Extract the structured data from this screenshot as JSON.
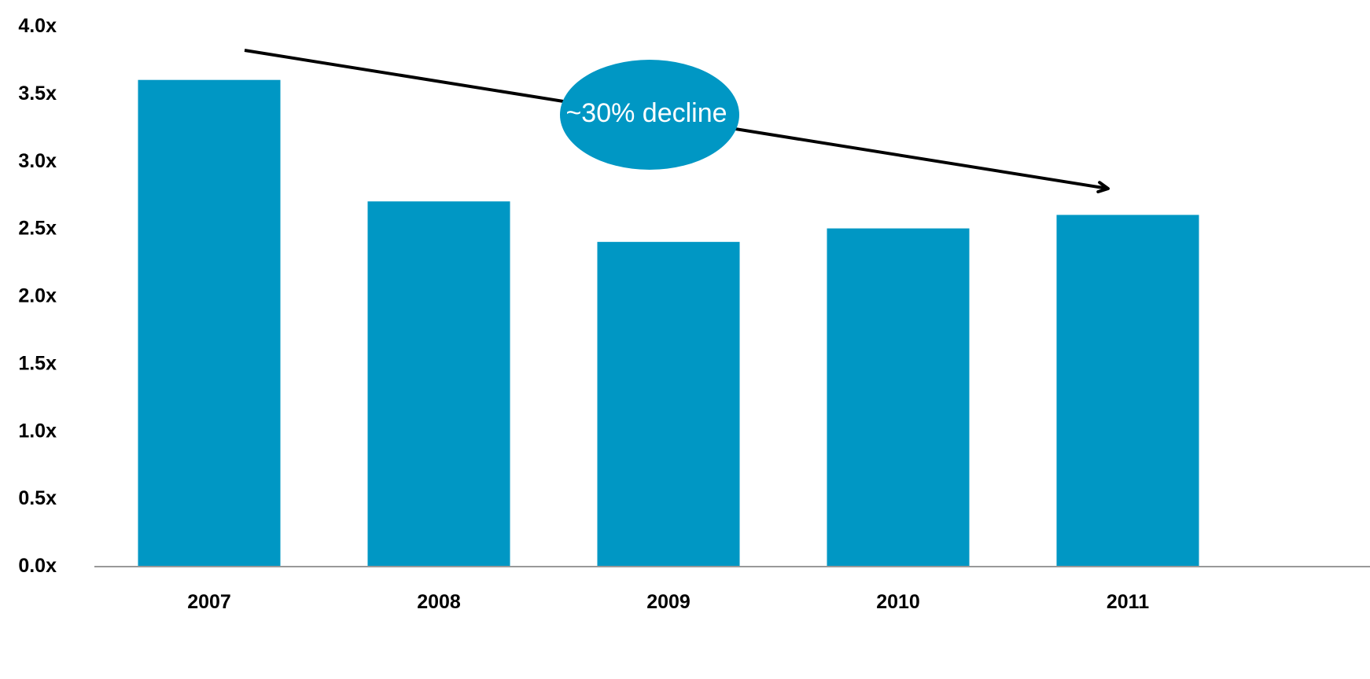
{
  "chart_data": {
    "type": "bar",
    "categories": [
      "2007",
      "2008",
      "2009",
      "2010",
      "2011"
    ],
    "values": [
      3.6,
      2.7,
      2.4,
      2.5,
      2.6
    ],
    "title": "",
    "xlabel": "",
    "ylabel": "",
    "ylim": [
      0,
      4.0
    ],
    "yticks": [
      0.0,
      0.5,
      1.0,
      1.5,
      2.0,
      2.5,
      3.0,
      3.5,
      4.0
    ],
    "ytick_labels": [
      "0.0x",
      "0.5x",
      "1.0x",
      "1.5x",
      "2.0x",
      "2.5x",
      "3.0x",
      "3.5x",
      "4.0x"
    ],
    "grid": false,
    "legend": "none",
    "colors": {
      "bar": "#0097C4",
      "axis": "#999999",
      "arrow": "#000000",
      "annotation_bubble": "#0097C4",
      "annotation_text": "#ffffff"
    },
    "annotation": {
      "text": "~30% decline",
      "from_category": "2007",
      "to_category": "2011"
    }
  }
}
